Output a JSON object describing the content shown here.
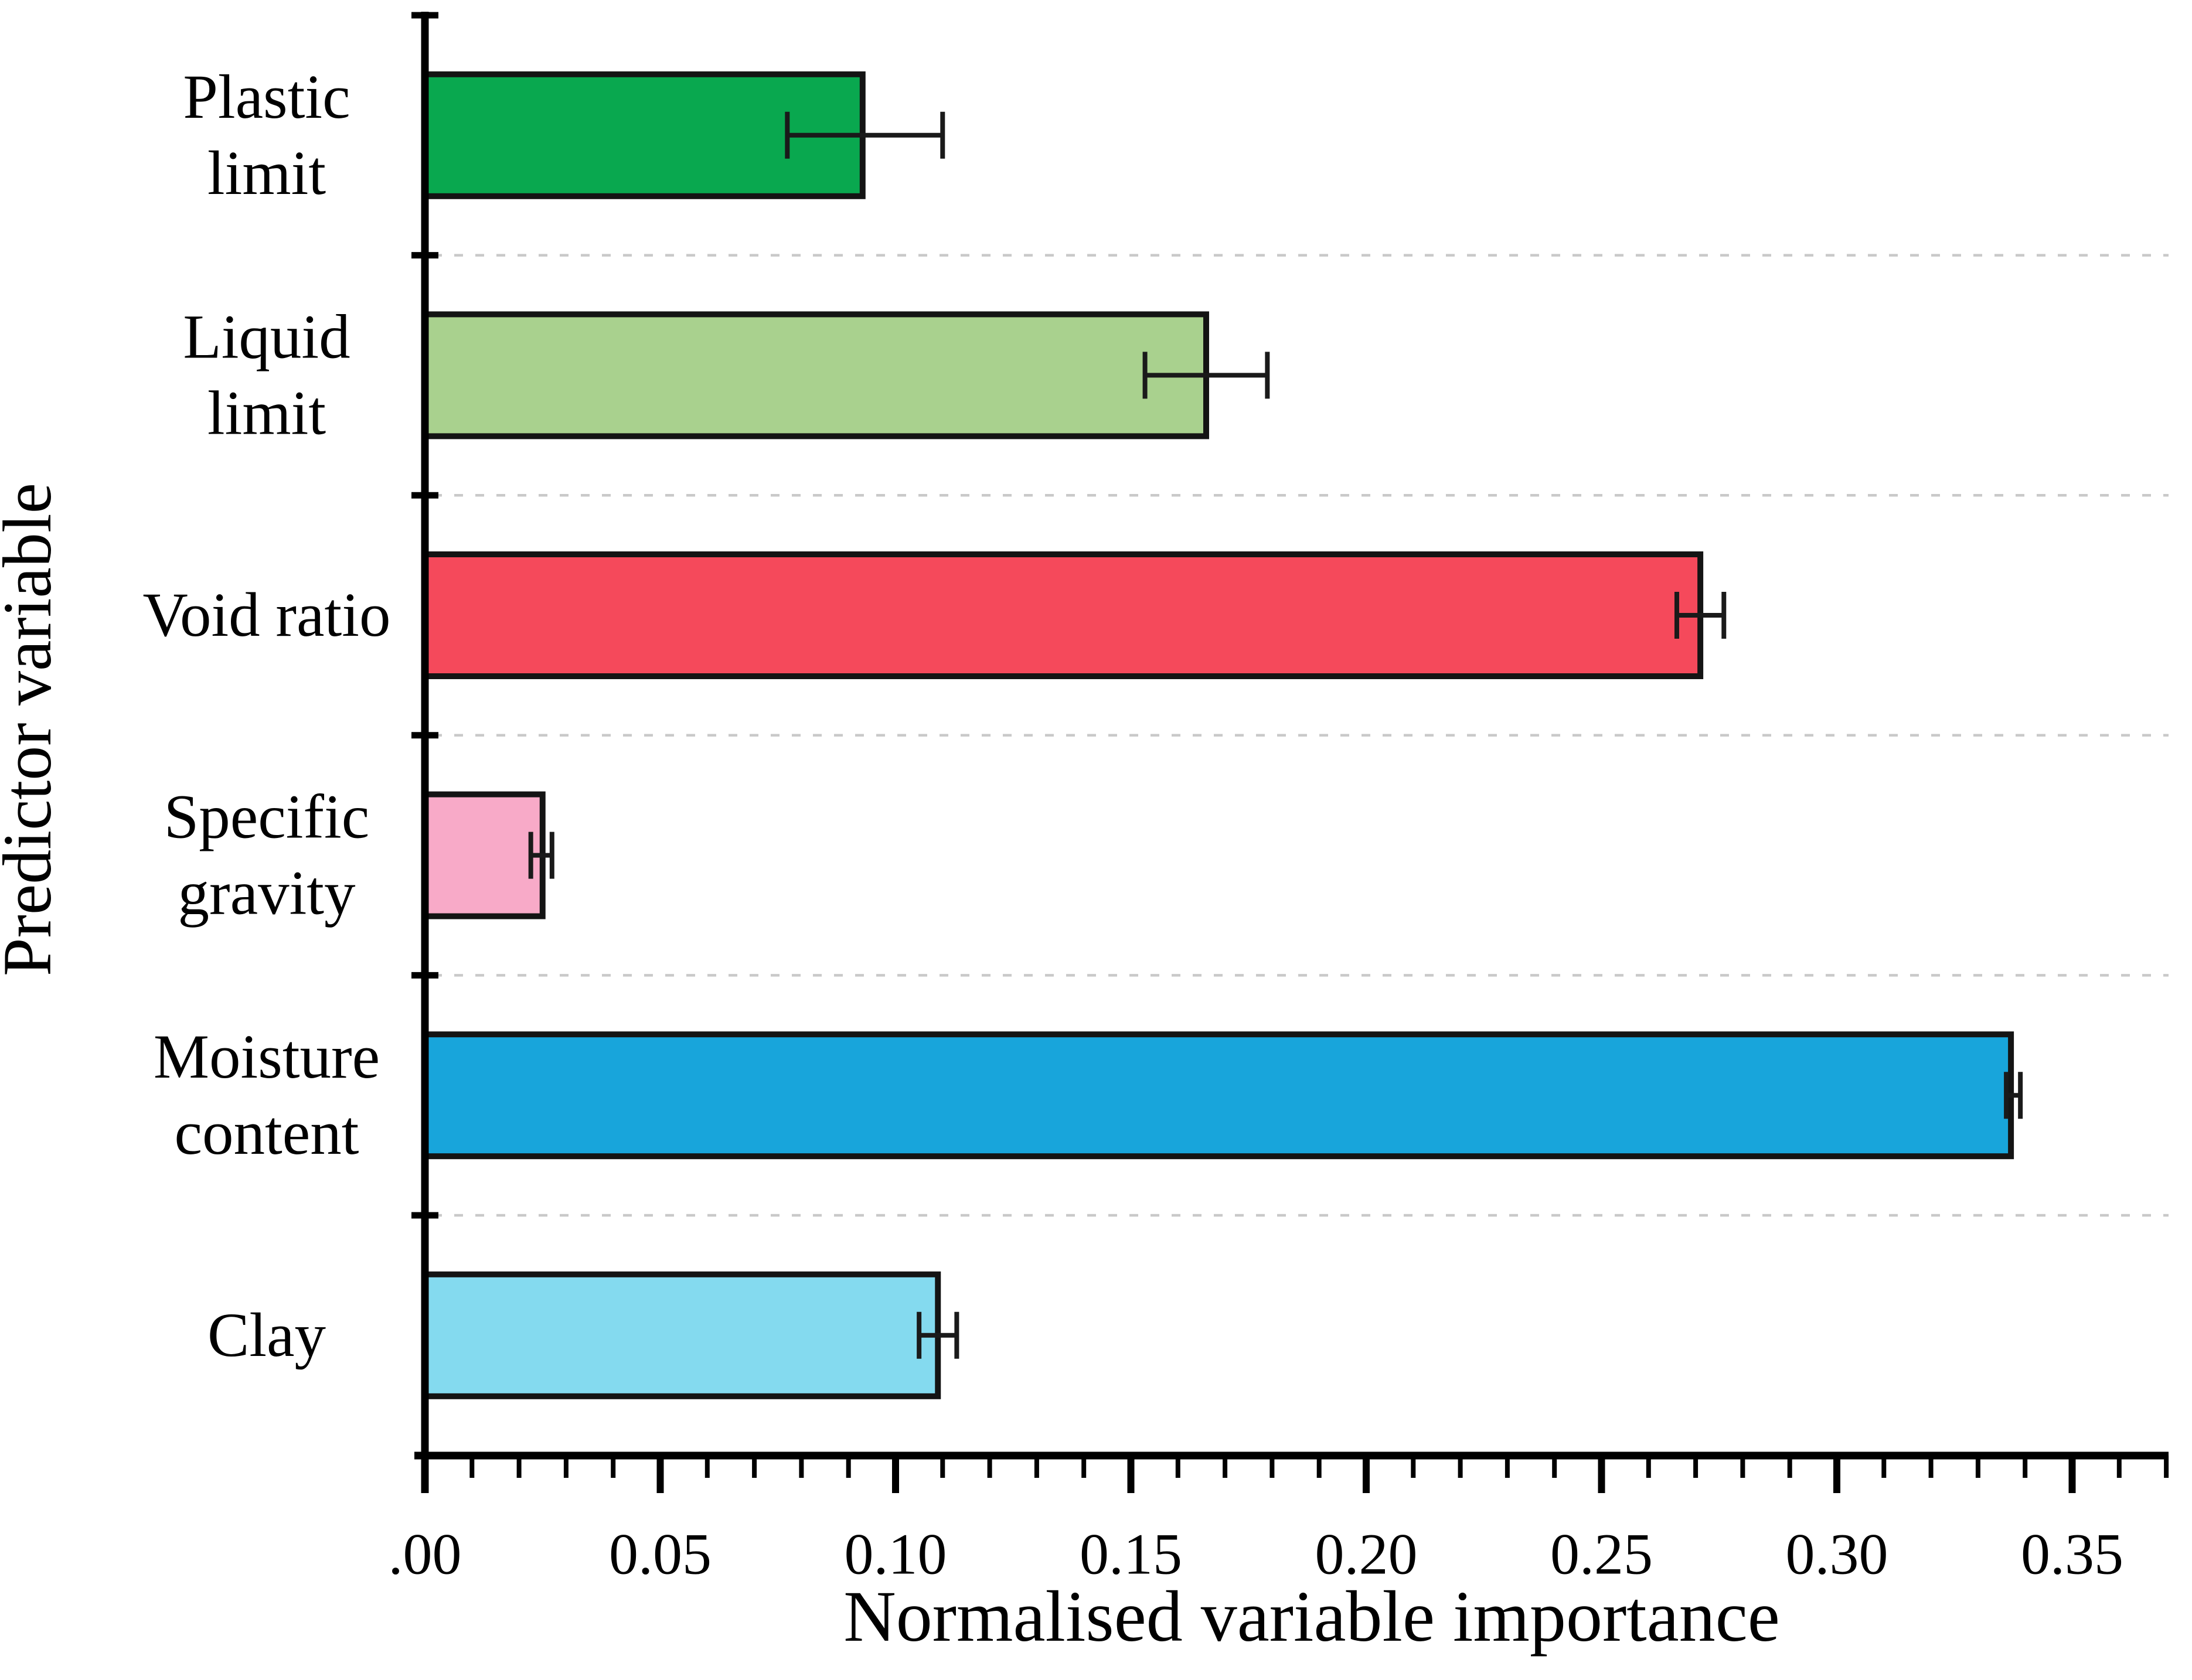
{
  "figure": {
    "background": "#FFFFFF"
  },
  "chart_data": {
    "type": "bar",
    "orientation": "horizontal",
    "title": "",
    "xlabel": "Normalised variable importance",
    "ylabel": "Predictor variable",
    "categories": [
      "Plastic limit",
      "Liquid limit",
      "Void ratio",
      "Specific gravity",
      "Moisture content",
      "Clay"
    ],
    "category_label_lines": [
      [
        "Plastic",
        "limit"
      ],
      [
        "Liquid",
        "limit"
      ],
      [
        "Void ratio"
      ],
      [
        "Specific",
        "gravity"
      ],
      [
        "Moisture",
        "content"
      ],
      [
        "Clay"
      ]
    ],
    "series": [
      {
        "name": "Normalised variable importance",
        "values": [
          0.093,
          0.166,
          0.271,
          0.025,
          0.337,
          0.109
        ],
        "error_low": [
          0.077,
          0.153,
          0.266,
          0.0225,
          0.336,
          0.105
        ],
        "error_high": [
          0.11,
          0.179,
          0.276,
          0.027,
          0.339,
          0.113
        ]
      }
    ],
    "bar_colors": [
      "#09A84F",
      "#A9D18E",
      "#F5495B",
      "#F8AAC8",
      "#18A5DB",
      "#84DAEF"
    ],
    "bar_border_color": "#141414",
    "error_bar_color": "#1A1A1A",
    "x_ticks": [
      {
        "label": ".00",
        "value": 0.0
      },
      {
        "label": "0.05",
        "value": 0.05
      },
      {
        "label": "0.10",
        "value": 0.1
      },
      {
        "label": "0.15",
        "value": 0.15
      },
      {
        "label": "0.20",
        "value": 0.2
      },
      {
        "label": "0.25",
        "value": 0.25
      },
      {
        "label": "0.30",
        "value": 0.3
      },
      {
        "label": "0.35",
        "value": 0.35
      }
    ],
    "x_minor_tick_step": 0.01,
    "xlim": [
      0,
      0.3705
    ],
    "grid": {
      "style": "dashed",
      "color": "#C9C9C9",
      "between_categories": true
    },
    "axis_color": "#000000",
    "legend": "none"
  }
}
